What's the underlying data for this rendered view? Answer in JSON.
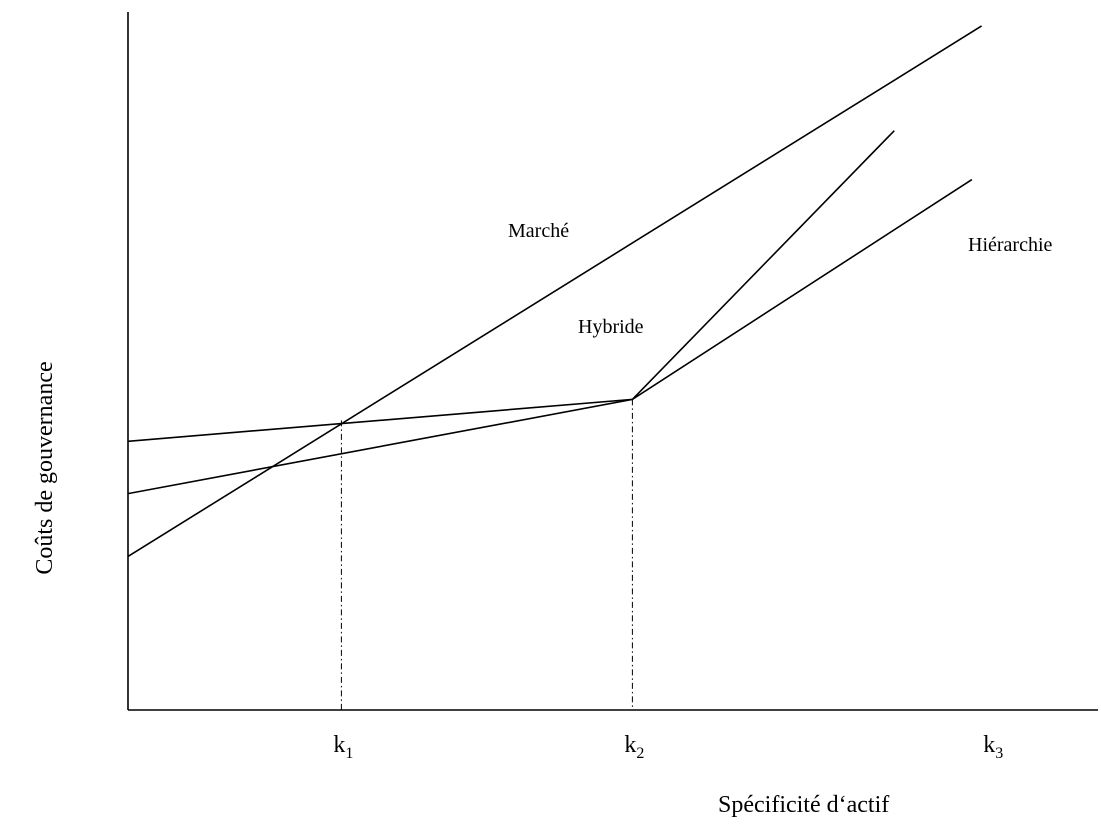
{
  "chart_data": {
    "type": "line",
    "title": "",
    "xlabel": "Spécificité d‘actif",
    "ylabel": "Coûts de gouvernance",
    "xlim": [
      0,
      10
    ],
    "ylim": [
      0,
      10
    ],
    "grid": false,
    "legend": "none",
    "x_ticks": [
      {
        "base": "k",
        "sub": "1",
        "value": 2.2
      },
      {
        "base": "k",
        "sub": "2",
        "value": 5.2
      },
      {
        "base": "k",
        "sub": "3",
        "value": 8.9
      }
    ],
    "series": [
      {
        "name": "Marché",
        "points": [
          [
            0,
            2.2
          ],
          [
            8.8,
            9.8
          ]
        ]
      },
      {
        "name": "Hybride",
        "points": [
          [
            0,
            3.1
          ],
          [
            5.2,
            4.45
          ],
          [
            7.9,
            8.3
          ]
        ]
      },
      {
        "name": "Hiérarchie",
        "points": [
          [
            0,
            3.85
          ],
          [
            5.2,
            4.45
          ],
          [
            8.7,
            7.6
          ]
        ]
      }
    ],
    "guides": [
      {
        "x": 2.2,
        "y_top": 4.15
      },
      {
        "x": 5.2,
        "y_top": 4.45
      }
    ]
  }
}
